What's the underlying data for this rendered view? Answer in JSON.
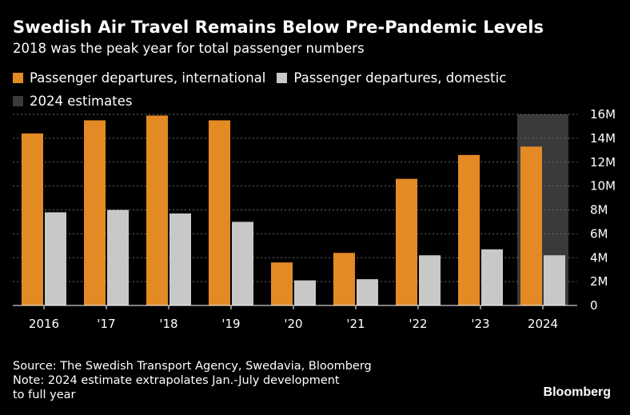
{
  "header": {
    "title": "Swedish Air Travel Remains Below Pre-Pandemic Levels",
    "subtitle": "2018 was the peak year for total passenger numbers"
  },
  "legend": {
    "international": "Passenger departures, international",
    "domestic": "Passenger departures, domestic",
    "estimates": "2024 estimates"
  },
  "colors": {
    "international": "#E48A25",
    "domestic": "#C8C8C8",
    "estimate_band": "#3A3A3A",
    "background": "#000000",
    "grid": "#6E6E6E"
  },
  "chart_data": {
    "type": "bar",
    "categories": [
      "2016",
      "'17",
      "'18",
      "'19",
      "'20",
      "'21",
      "'22",
      "'23",
      "2024"
    ],
    "series": [
      {
        "name": "Passenger departures, international",
        "values": [
          14.4,
          15.5,
          15.9,
          15.5,
          3.6,
          4.4,
          10.6,
          12.6,
          13.3
        ]
      },
      {
        "name": "Passenger departures, domestic",
        "values": [
          7.8,
          8.0,
          7.7,
          7.0,
          2.1,
          2.2,
          4.2,
          4.7,
          4.2
        ]
      }
    ],
    "estimate_category": "2024",
    "ylim": [
      0,
      16
    ],
    "yticks": [
      0,
      2,
      4,
      6,
      8,
      10,
      12,
      14,
      16
    ],
    "ytick_labels": [
      "0",
      "2M",
      "4M",
      "6M",
      "8M",
      "10M",
      "12M",
      "14M",
      "16M"
    ],
    "y_axis_side": "right",
    "grid": true
  },
  "footer": {
    "source": "Source: The Swedish Transport Agency, Swedavia, Bloomberg",
    "note_line1": "Note: 2024 estimate extrapolates Jan.-July development",
    "note_line2": "to full year",
    "brand": "Bloomberg"
  }
}
